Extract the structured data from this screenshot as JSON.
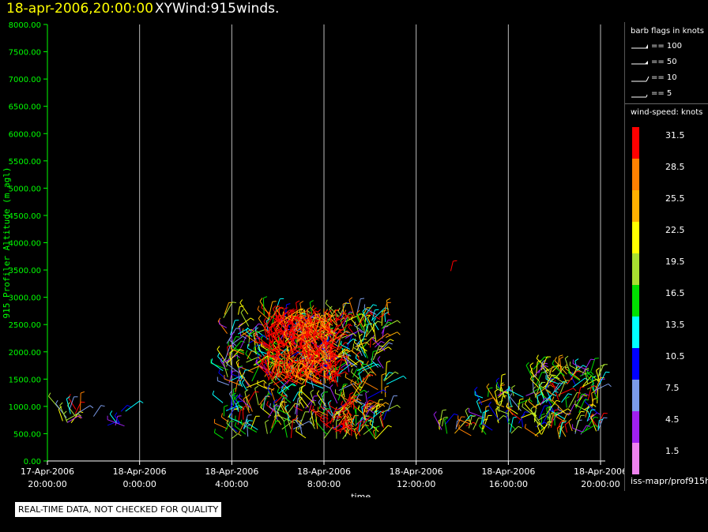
{
  "header": {
    "date_label": "18-apr-2006,20:00:00",
    "product_label": "XYWind:915winds."
  },
  "chart_data": {
    "type": "scatter",
    "subtype": "wind-barb time-height plot",
    "ylabel": "915 Profiler Altitude (m agl)",
    "xlabel": "time",
    "ylim": [
      0,
      8000
    ],
    "yticks": [
      "0.00",
      "500.00",
      "1000.00",
      "1500.00",
      "2000.00",
      "2500.00",
      "3000.00",
      "3500.00",
      "4000.00",
      "4500.00",
      "5000.00",
      "5500.00",
      "6000.00",
      "6500.00",
      "7000.00",
      "7500.00",
      "8000.00"
    ],
    "xrange_hours": [
      0,
      24
    ],
    "xticks": [
      {
        "hour": 0,
        "date": "17-Apr-2006",
        "time": "20:00:00"
      },
      {
        "hour": 4,
        "date": "18-Apr-2006",
        "time": "0:00:00"
      },
      {
        "hour": 8,
        "date": "18-Apr-2006",
        "time": "4:00:00"
      },
      {
        "hour": 12,
        "date": "18-Apr-2006",
        "time": "8:00:00"
      },
      {
        "hour": 16,
        "date": "18-Apr-2006",
        "time": "12:00:00"
      },
      {
        "hour": 20,
        "date": "18-Apr-2006",
        "time": "16:00:00"
      },
      {
        "hour": 24,
        "date": "18-Apr-2006",
        "time": "20:00:00"
      }
    ],
    "grid": "vertical lines at each x tick",
    "wind_clusters": [
      {
        "t0": 0.5,
        "t1": 1.5,
        "z0": 550,
        "z1": 1000,
        "speed": "mixed",
        "density": 16
      },
      {
        "t0": 2.0,
        "t1": 3.5,
        "z0": 600,
        "z1": 950,
        "speed": "low",
        "density": 8
      },
      {
        "t0": 7.6,
        "t1": 14.8,
        "z0": 400,
        "z1": 2700,
        "speed": "mixed",
        "density": 520
      },
      {
        "t0": 9.5,
        "t1": 12.6,
        "z0": 1400,
        "z1": 2600,
        "speed": "high",
        "density": 360
      },
      {
        "t0": 12.0,
        "t1": 14.0,
        "z0": 450,
        "z1": 1000,
        "speed": "high",
        "density": 40
      },
      {
        "t0": 16.8,
        "t1": 18.8,
        "z0": 450,
        "z1": 700,
        "speed": "mixed",
        "density": 16
      },
      {
        "t0": 18.6,
        "t1": 20.9,
        "z0": 450,
        "z1": 1300,
        "speed": "mixed",
        "density": 50
      },
      {
        "t0": 21.0,
        "t1": 24.0,
        "z0": 400,
        "z1": 1700,
        "speed": "mixed",
        "density": 150
      }
    ],
    "isolated_barbs": [
      {
        "t": 17.5,
        "z": 3480,
        "color": "#ff0000"
      }
    ]
  },
  "legend": {
    "barb_title": "barb flags in knots",
    "barb_items": [
      "== 100",
      "== 50",
      "== 10",
      "== 5"
    ],
    "speed_title": "wind-speed: knots",
    "speed_bins": [
      {
        "label": "31.5",
        "color": "#ff0000"
      },
      {
        "label": "28.5",
        "color": "#ff8000"
      },
      {
        "label": "25.5",
        "color": "#ffb000"
      },
      {
        "label": "22.5",
        "color": "#ffff00"
      },
      {
        "label": "19.5",
        "color": "#a8e030"
      },
      {
        "label": "16.5",
        "color": "#00e000"
      },
      {
        "label": "13.5",
        "color": "#00ffff"
      },
      {
        "label": "10.5",
        "color": "#0000ff"
      },
      {
        "label": "7.5",
        "color": "#7a9ae8"
      },
      {
        "label": "4.5",
        "color": "#a020f0"
      },
      {
        "label": "1.5",
        "color": "#ee82ee"
      }
    ],
    "footer": "iss-mapr/prof915h"
  },
  "qc_note": "REAL-TIME DATA, NOT CHECKED FOR QUALITY",
  "colors": {
    "axis": "#00ff00",
    "grid": "#bbbbbb",
    "date_title": "#ffff00"
  }
}
